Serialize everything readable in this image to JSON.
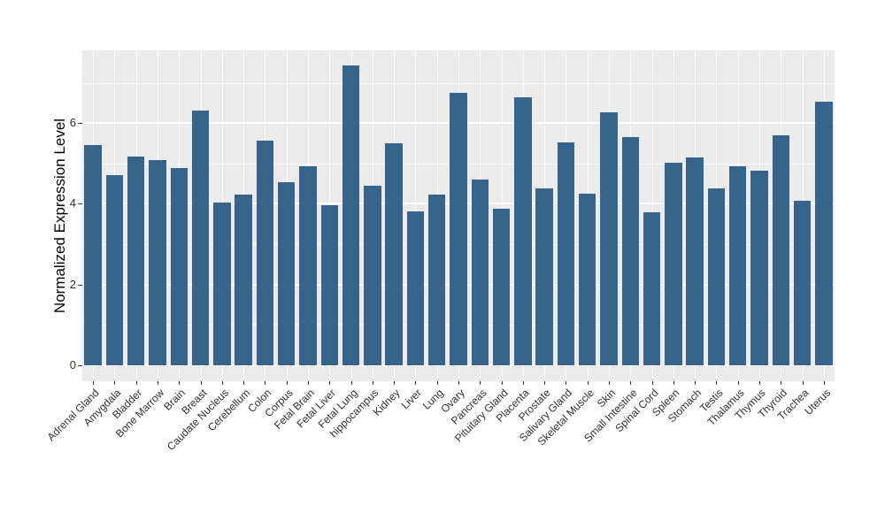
{
  "chart_data": {
    "type": "bar",
    "title": "",
    "xlabel": "",
    "ylabel": "Normalized Expression Level",
    "categories": [
      "Adrenal Gland",
      "Amygdala",
      "Bladder",
      "Bone Marrow",
      "Brain",
      "Breast",
      "Caudate Nucleus",
      "Cerebellum",
      "Colon",
      "Corpus",
      "Fetal Brain",
      "Fetal Liver",
      "Fetal Lung",
      "hippocampus",
      "Kidney",
      "Liver",
      "Lung",
      "Ovary",
      "Pancreas",
      "Pituitary Gland",
      "Placenta",
      "Prostate",
      "Salivary Gland",
      "Skeletal Muscle",
      "Skin",
      "Small Intestine",
      "Spinal Cord",
      "Spleen",
      "Stomach",
      "Testis",
      "Thalamus",
      "Thymus",
      "Thyroid",
      "Trachea",
      "Uterus"
    ],
    "values": [
      5.45,
      4.71,
      5.18,
      5.09,
      4.89,
      6.31,
      4.03,
      4.22,
      5.56,
      4.53,
      4.92,
      3.97,
      7.43,
      4.45,
      5.51,
      3.81,
      4.23,
      6.74,
      4.6,
      3.87,
      6.64,
      4.39,
      5.52,
      4.25,
      6.27,
      5.66,
      3.79,
      5.02,
      5.14,
      4.39,
      4.94,
      4.82,
      5.69,
      4.08,
      6.53
    ],
    "ylim": [
      0,
      7.8
    ],
    "yticks": [
      0,
      2,
      4,
      6
    ],
    "yticks_minor": [
      1,
      3,
      5,
      7
    ],
    "grid": "on",
    "legend": "none",
    "x_label_rotation_deg": 45,
    "colors": {
      "bar_fill": "#36648B",
      "panel_background": "#EBEBEB",
      "grid_major": "#FFFFFF",
      "tick_text": "#303030",
      "axis_title_text": "#000000",
      "figure_background": "#FFFFFF"
    }
  }
}
